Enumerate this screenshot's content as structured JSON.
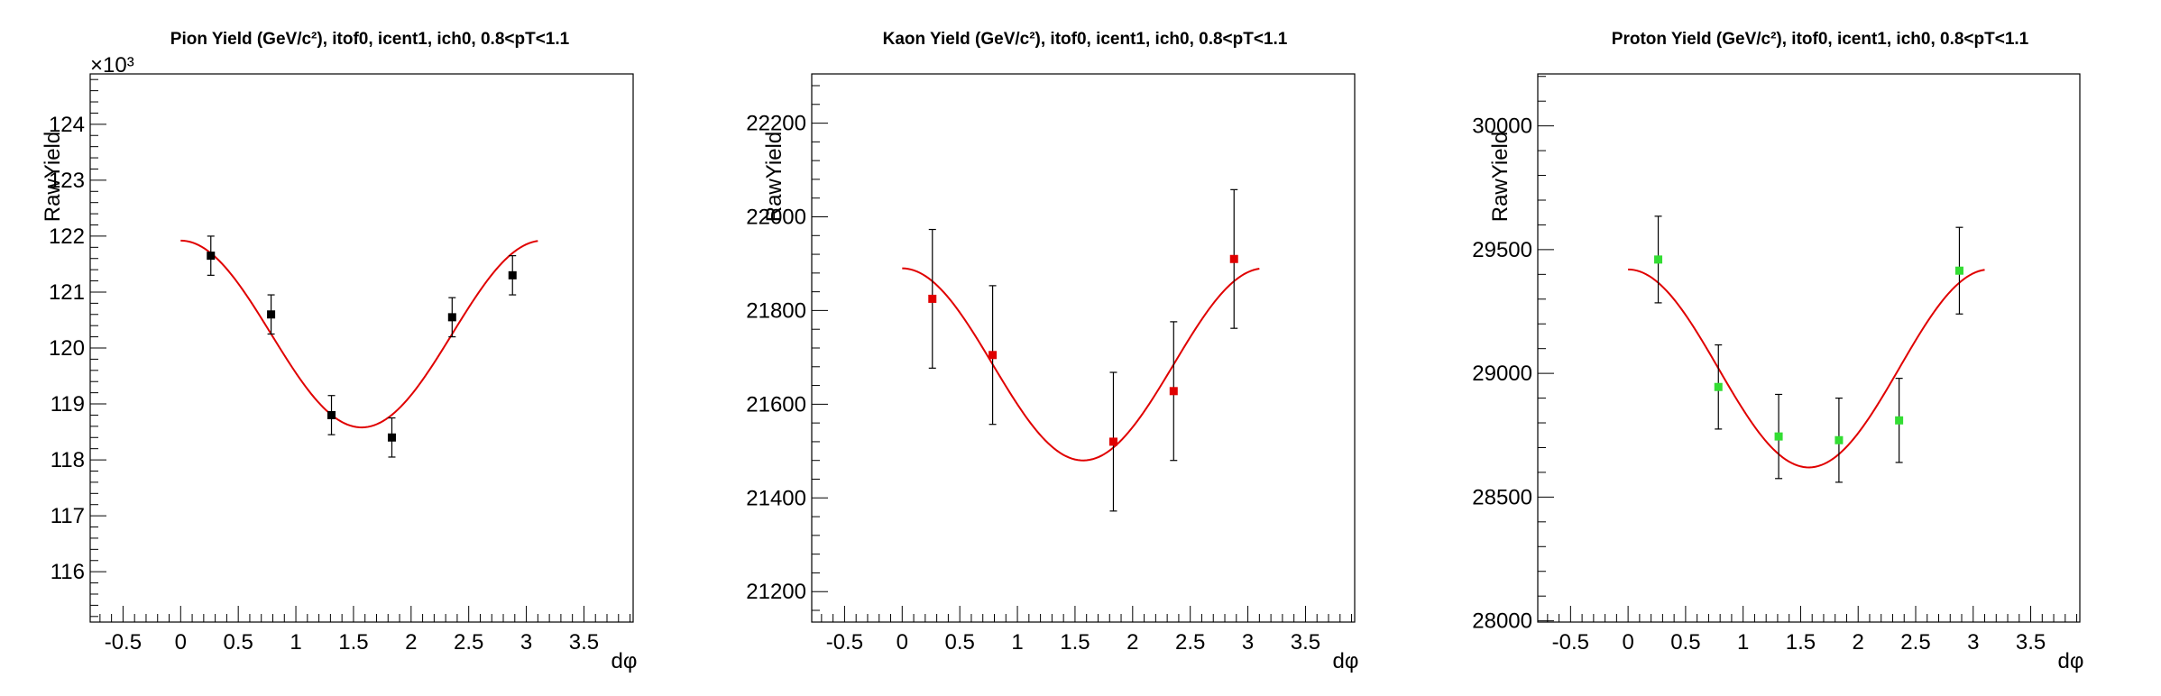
{
  "chart_data": [
    {
      "type": "scatter",
      "title": "Pion Yield (GeV/c²), itof0, icent1, ich0, 0.8<pT<1.1",
      "xlabel": "dφ",
      "ylabel": "RawYield",
      "xlim": [
        -0.785,
        3.927
      ],
      "ylim": [
        115.1,
        124.9
      ],
      "y_multiplier": "×10³",
      "x_ticks": [
        -0.5,
        0,
        0.5,
        1,
        1.5,
        2,
        2.5,
        3,
        3.5
      ],
      "x_tick_labels": [
        "-0.5",
        "0",
        "0.5",
        "1",
        "1.5",
        "2",
        "2.5",
        "3",
        "3.5"
      ],
      "y_ticks": [
        116,
        117,
        118,
        119,
        120,
        121,
        122,
        123,
        124
      ],
      "y_tick_labels": [
        "116",
        "117",
        "118",
        "119",
        "120",
        "121",
        "122",
        "123",
        "124"
      ],
      "marker_color": "#000000",
      "fit_color": "#e00000",
      "points": [
        {
          "x": 0.262,
          "y": 121.65,
          "err": 0.35
        },
        {
          "x": 0.785,
          "y": 120.6,
          "err": 0.35
        },
        {
          "x": 1.309,
          "y": 118.8,
          "err": 0.35
        },
        {
          "x": 1.833,
          "y": 118.4,
          "err": 0.35
        },
        {
          "x": 2.356,
          "y": 120.55,
          "err": 0.35
        },
        {
          "x": 2.88,
          "y": 121.3,
          "err": 0.35
        }
      ],
      "fit": {
        "type": "cosine",
        "center": 120.25,
        "amplitude": 1.67,
        "x_range": [
          0.0,
          3.1
        ]
      },
      "grid": false
    },
    {
      "type": "scatter",
      "title": "Kaon Yield (GeV/c²), itof0, icent1, ich0, 0.8<pT<1.1",
      "xlabel": "dφ",
      "ylabel": "RawYield",
      "xlim": [
        -0.785,
        3.927
      ],
      "ylim": [
        21135,
        22305
      ],
      "x_ticks": [
        -0.5,
        0,
        0.5,
        1,
        1.5,
        2,
        2.5,
        3,
        3.5
      ],
      "x_tick_labels": [
        "-0.5",
        "0",
        "0.5",
        "1",
        "1.5",
        "2",
        "2.5",
        "3",
        "3.5"
      ],
      "y_ticks": [
        21200,
        21400,
        21600,
        21800,
        22000,
        22200
      ],
      "y_tick_labels": [
        "21200",
        "21400",
        "21600",
        "21800",
        "22000",
        "22200"
      ],
      "marker_color": "#e00000",
      "fit_color": "#e00000",
      "points": [
        {
          "x": 0.262,
          "y": 21825,
          "err": 148
        },
        {
          "x": 0.785,
          "y": 21705,
          "err": 148
        },
        {
          "x": 1.833,
          "y": 21520,
          "err": 148
        },
        {
          "x": 2.356,
          "y": 21628,
          "err": 148
        },
        {
          "x": 2.88,
          "y": 21910,
          "err": 148
        }
      ],
      "fit": {
        "type": "cosine",
        "center": 21685,
        "amplitude": 205,
        "x_range": [
          0.0,
          3.1
        ]
      },
      "grid": false
    },
    {
      "type": "scatter",
      "title": "Proton Yield (GeV/c²), itof0, icent1, ich0, 0.8<pT<1.1",
      "xlabel": "dφ",
      "ylabel": "RawYield",
      "xlim": [
        -0.785,
        3.927
      ],
      "ylim": [
        27995,
        30210
      ],
      "x_ticks": [
        -0.5,
        0,
        0.5,
        1,
        1.5,
        2,
        2.5,
        3,
        3.5
      ],
      "x_tick_labels": [
        "-0.5",
        "0",
        "0.5",
        "1",
        "1.5",
        "2",
        "2.5",
        "3",
        "3.5"
      ],
      "y_ticks": [
        28000,
        28500,
        29000,
        29500,
        30000
      ],
      "y_tick_labels": [
        "28000",
        "28500",
        "29000",
        "29500",
        "30000"
      ],
      "marker_color": "#33dd33",
      "fit_color": "#e00000",
      "points": [
        {
          "x": 0.262,
          "y": 29460,
          "err": 175
        },
        {
          "x": 0.785,
          "y": 28945,
          "err": 170
        },
        {
          "x": 1.309,
          "y": 28745,
          "err": 170
        },
        {
          "x": 1.833,
          "y": 28730,
          "err": 170
        },
        {
          "x": 2.356,
          "y": 28810,
          "err": 170
        },
        {
          "x": 2.88,
          "y": 29415,
          "err": 175
        }
      ],
      "fit": {
        "type": "cosine",
        "center": 29020,
        "amplitude": 400,
        "x_range": [
          0.0,
          3.1
        ]
      },
      "grid": false
    }
  ]
}
